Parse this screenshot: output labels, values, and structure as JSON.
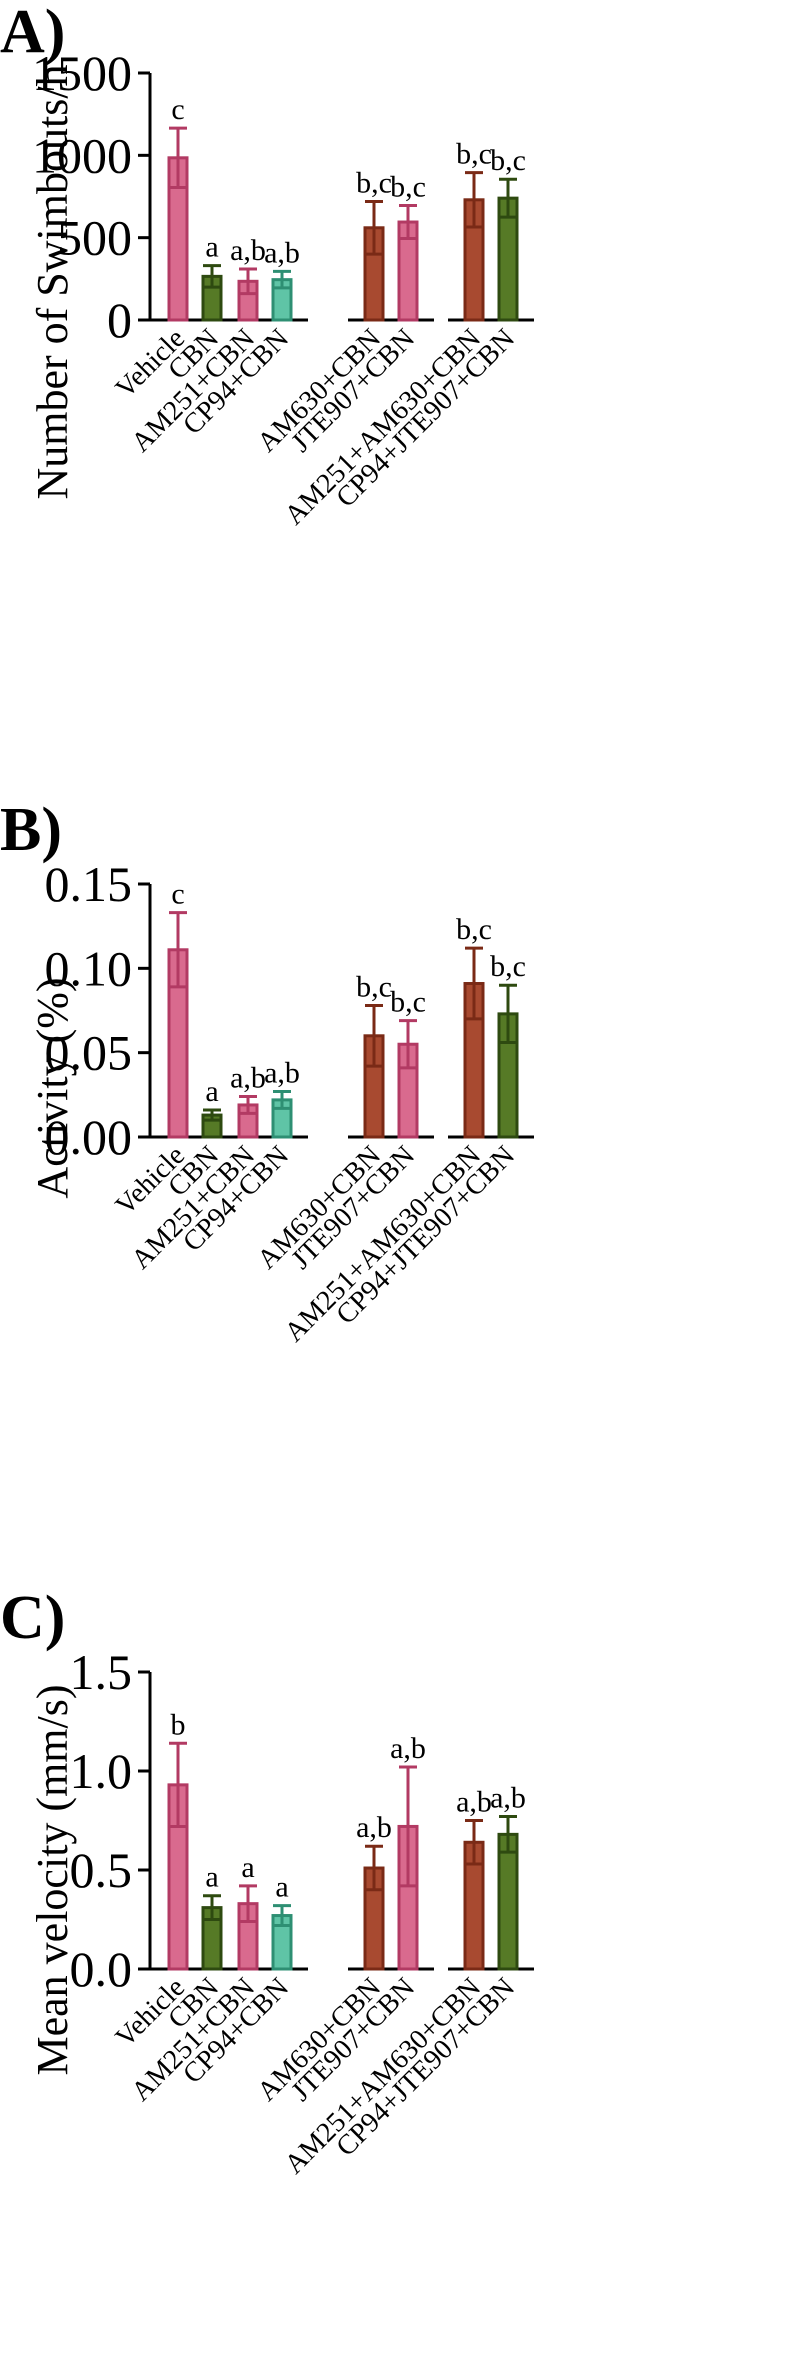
{
  "figure": {
    "categories": [
      "Vehicle",
      "CBN",
      "AM251+CBN",
      "CP94+CBN",
      "AM630+CBN",
      "JTE907+CBN",
      "AM251+AM630+CBN",
      "CP94+JTE907+CBN"
    ],
    "colors": {
      "pink_fill": "#d96a8e",
      "pink_edge": "#b23a63",
      "green_fill": "#567a26",
      "green_edge": "#2e4a10",
      "teal_fill": "#5fc4a6",
      "teal_edge": "#2e8f73",
      "brown_fill": "#a84a30",
      "brown_edge": "#7a2a16"
    },
    "bar_colors": [
      "pink",
      "green",
      "pink",
      "teal",
      "brown",
      "pink",
      "brown",
      "green"
    ]
  },
  "chart_data": [
    {
      "type": "bar",
      "panel_label": "A)",
      "title": "",
      "ylabel": "Number of Swimbouts/h",
      "xlabel": "",
      "ylim": [
        0,
        1500
      ],
      "yticks": [
        "0",
        "500",
        "1000",
        "1500"
      ],
      "yticks_values": [
        0,
        500,
        1000,
        1500
      ],
      "categories": [
        "Vehicle",
        "CBN",
        "AM251+CBN",
        "CP94+CBN",
        "AM630+CBN",
        "JTE907+CBN",
        "AM251+AM630+CBN",
        "CP94+JTE907+CBN"
      ],
      "values": [
        985,
        265,
        235,
        245,
        560,
        595,
        730,
        740
      ],
      "errors": [
        180,
        65,
        75,
        50,
        160,
        100,
        165,
        115
      ],
      "annotations": [
        "c",
        "a",
        "a,b",
        "a,b",
        "b,c",
        "b,c",
        "b,c",
        "b,c"
      ]
    },
    {
      "type": "bar",
      "panel_label": "B)",
      "title": "",
      "ylabel": "Activity (%)",
      "xlabel": "",
      "ylim": [
        0,
        0.15
      ],
      "yticks": [
        "0.00",
        "0.05",
        "0.10",
        "0.15"
      ],
      "yticks_values": [
        0,
        0.05,
        0.1,
        0.15
      ],
      "categories": [
        "Vehicle",
        "CBN",
        "AM251+CBN",
        "CP94+CBN",
        "AM630+CBN",
        "JTE907+CBN",
        "AM251+AM630+CBN",
        "CP94+JTE907+CBN"
      ],
      "values": [
        0.111,
        0.013,
        0.019,
        0.022,
        0.06,
        0.055,
        0.091,
        0.073
      ],
      "errors": [
        0.022,
        0.003,
        0.005,
        0.005,
        0.018,
        0.014,
        0.021,
        0.017
      ],
      "annotations": [
        "c",
        "a",
        "a,b",
        "a,b",
        "b,c",
        "b,c",
        "b,c",
        "b,c"
      ]
    },
    {
      "type": "bar",
      "panel_label": "C)",
      "title": "",
      "ylabel": "Mean velocity (mm/s)",
      "xlabel": "",
      "ylim": [
        0,
        1.5
      ],
      "yticks": [
        "0.0",
        "0.5",
        "1.0",
        "1.5"
      ],
      "yticks_values": [
        0,
        0.5,
        1.0,
        1.5
      ],
      "categories": [
        "Vehicle",
        "CBN",
        "AM251+CBN",
        "CP94+CBN",
        "AM630+CBN",
        "JTE907+CBN",
        "AM251+AM630+CBN",
        "CP94+JTE907+CBN"
      ],
      "values": [
        0.93,
        0.31,
        0.33,
        0.27,
        0.51,
        0.72,
        0.64,
        0.68
      ],
      "errors": [
        0.21,
        0.06,
        0.09,
        0.05,
        0.11,
        0.3,
        0.11,
        0.09
      ],
      "annotations": [
        "b",
        "a",
        "a",
        "a",
        "a,b",
        "a,b",
        "a,b",
        "a,b"
      ]
    }
  ]
}
